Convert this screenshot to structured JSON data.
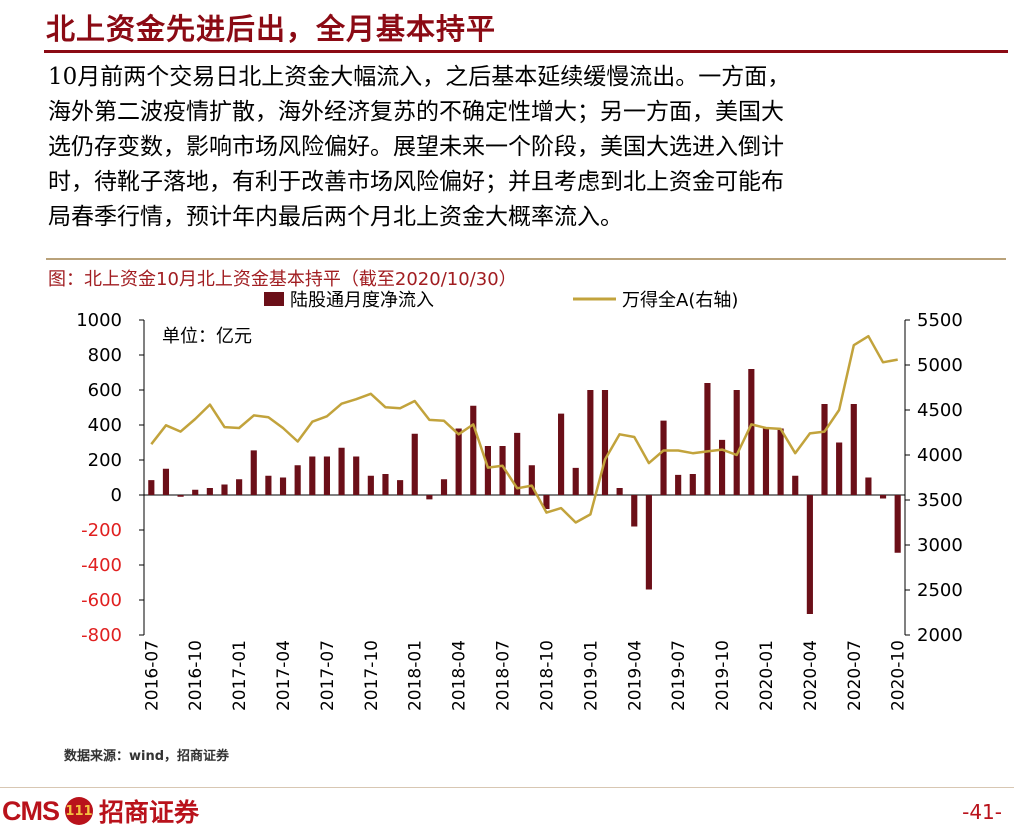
{
  "header": {
    "title": "北上资金先进后出，全月基本持平"
  },
  "body": {
    "lines": [
      "10月前两个交易日北上资金大幅流入，之后基本延续缓慢流出。一方面，",
      "海外第二波疫情扩散，海外经济复苏的不确定性增大；另一方面，美国大",
      "选仍存变数，影响市场风险偏好。展望未来一个阶段，美国大选进入倒计",
      "时，待靴子落地，有利于改善市场风险偏好；并且考虑到北上资金可能布",
      "局春季行情，预计年内最后两个月北上资金大概率流入。"
    ]
  },
  "figure": {
    "caption": "图：北上资金10月北上资金基本持平（截至2020/10/30）",
    "unit": "单位：亿元",
    "source": "数据来源：wind，招商证券"
  },
  "footer": {
    "logo_text": "CMS",
    "logo_mark": "111",
    "company": "招商证券",
    "page": "-41-"
  },
  "colors": {
    "bar": "#6b0f18",
    "line": "#c2a33c",
    "accent": "#8b0a14",
    "negative_tick": "#e02020"
  },
  "chart_data": {
    "type": "bar",
    "x_tick_labels": [
      "2016-07",
      "2016-10",
      "2017-01",
      "2017-04",
      "2017-07",
      "2017-10",
      "2018-01",
      "2018-04",
      "2018-07",
      "2018-10",
      "2019-01",
      "2019-04",
      "2019-07",
      "2019-10",
      "2020-01",
      "2020-04",
      "2020-07",
      "2020-10"
    ],
    "categories": [
      "2016-07",
      "2016-08",
      "2016-09",
      "2016-10",
      "2016-11",
      "2016-12",
      "2017-01",
      "2017-02",
      "2017-03",
      "2017-04",
      "2017-05",
      "2017-06",
      "2017-07",
      "2017-08",
      "2017-09",
      "2017-10",
      "2017-11",
      "2017-12",
      "2018-01",
      "2018-02",
      "2018-03",
      "2018-04",
      "2018-05",
      "2018-06",
      "2018-07",
      "2018-08",
      "2018-09",
      "2018-10",
      "2018-11",
      "2018-12",
      "2019-01",
      "2019-02",
      "2019-03",
      "2019-04",
      "2019-05",
      "2019-06",
      "2019-07",
      "2019-08",
      "2019-09",
      "2019-10",
      "2019-11",
      "2019-12",
      "2020-01",
      "2020-02",
      "2020-03",
      "2020-04",
      "2020-05",
      "2020-06",
      "2020-07",
      "2020-08",
      "2020-09",
      "2020-10"
    ],
    "series": [
      {
        "name": "陆股通月度净流入",
        "type": "bar",
        "axis": "left",
        "values": [
          85,
          150,
          -10,
          30,
          40,
          60,
          90,
          255,
          110,
          100,
          170,
          220,
          220,
          270,
          220,
          110,
          120,
          85,
          350,
          -25,
          90,
          380,
          510,
          280,
          280,
          355,
          170,
          -80,
          465,
          155,
          600,
          600,
          40,
          -180,
          -540,
          425,
          115,
          120,
          640,
          315,
          600,
          720,
          380,
          380,
          110,
          -680,
          520,
          300,
          520,
          100,
          -20,
          -330
        ]
      },
      {
        "name": "万得全A(右轴)",
        "type": "line",
        "axis": "right",
        "values": [
          4120,
          4330,
          4260,
          4400,
          4560,
          4310,
          4300,
          4440,
          4420,
          4300,
          4150,
          4370,
          4430,
          4570,
          4620,
          4680,
          4530,
          4520,
          4600,
          4390,
          4380,
          4230,
          4340,
          3860,
          3880,
          3630,
          3660,
          3360,
          3410,
          3250,
          3340,
          3950,
          4230,
          4200,
          3910,
          4050,
          4050,
          4020,
          4040,
          4060,
          4000,
          4340,
          4300,
          4290,
          4020,
          4240,
          4260,
          4500,
          5220,
          5320,
          5030,
          5060
        ]
      }
    ],
    "ylim_left": [
      -800,
      1000
    ],
    "yticks_left": [
      -800,
      -600,
      -400,
      -200,
      0,
      200,
      400,
      600,
      800,
      1000
    ],
    "ylim_right": [
      2000,
      5500
    ],
    "yticks_right": [
      2000,
      2500,
      3000,
      3500,
      4000,
      4500,
      5000,
      5500
    ],
    "legend_position": "top-center",
    "grid": false
  }
}
